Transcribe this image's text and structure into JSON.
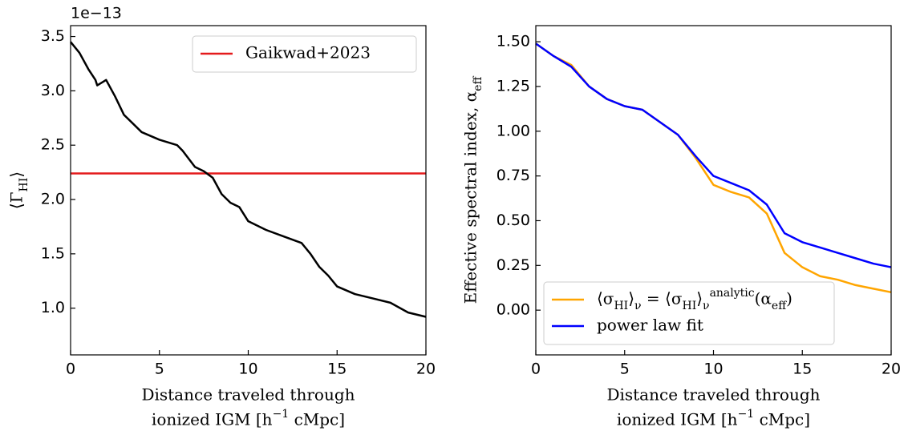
{
  "chart_data": [
    {
      "type": "line",
      "offset_label": "1e−13",
      "ylabel": "⟨Γ_{HI}⟩",
      "xlabel": [
        "Distance traveled through",
        "ionized IGM [h^{−1} cMpc]"
      ],
      "x": [
        0,
        0.5,
        1,
        1.4,
        1.5,
        2,
        2.5,
        3,
        3.5,
        4,
        5,
        6,
        6.3,
        7,
        7.5,
        8,
        8.5,
        9,
        9.5,
        10,
        11,
        12,
        13,
        13.5,
        14,
        14.5,
        15,
        16,
        17,
        18,
        19,
        20
      ],
      "values": [
        3.45,
        3.35,
        3.2,
        3.1,
        3.05,
        3.1,
        2.95,
        2.78,
        2.7,
        2.62,
        2.55,
        2.5,
        2.45,
        2.3,
        2.26,
        2.2,
        2.05,
        1.97,
        1.93,
        1.8,
        1.72,
        1.66,
        1.6,
        1.5,
        1.38,
        1.3,
        1.2,
        1.13,
        1.09,
        1.05,
        0.96,
        0.92
      ],
      "color": "#000000",
      "hlines": [
        {
          "name": "Gaikwad+2023",
          "value": 2.24,
          "color": "#e41a1c"
        }
      ],
      "legend": "upper right",
      "xlim": [
        0,
        20
      ],
      "xticks": [
        0,
        5,
        10,
        15,
        20
      ],
      "ylim": [
        0.57,
        3.6
      ],
      "yticks": [
        {
          "value": 1,
          "label": "1.0"
        },
        {
          "value": 1.5,
          "label": "1.5"
        },
        {
          "value": 2,
          "label": "2.0"
        },
        {
          "value": 2.5,
          "label": "2.5"
        },
        {
          "value": 3,
          "label": "3.0"
        },
        {
          "value": 3.5,
          "label": "3.5"
        }
      ]
    },
    {
      "type": "line",
      "ylabel": "Effective spectral index, α_{eff}",
      "xlabel": [
        "Distance traveled through",
        "ionized IGM [h^{−1} cMpc]"
      ],
      "x": [
        0,
        1,
        2,
        3,
        4,
        5,
        6,
        7,
        8,
        9,
        10,
        11,
        12,
        13,
        14,
        15,
        16,
        17,
        18,
        19,
        20
      ],
      "series": [
        {
          "name": "⟨σ_{HI}⟩_{ν} = ⟨σ_{HI}⟩_{ν}^{analytic}(α_{eff})",
          "color": "#ffa500",
          "values": [
            1.49,
            1.42,
            1.37,
            1.25,
            1.18,
            1.14,
            1.12,
            1.05,
            0.98,
            0.85,
            0.7,
            0.66,
            0.63,
            0.54,
            0.32,
            0.24,
            0.19,
            0.17,
            0.14,
            0.12,
            0.1
          ]
        },
        {
          "name": "power law fit",
          "color": "#0000ff",
          "values": [
            1.49,
            1.42,
            1.36,
            1.25,
            1.18,
            1.14,
            1.12,
            1.05,
            0.98,
            0.86,
            0.75,
            0.71,
            0.67,
            0.59,
            0.43,
            0.38,
            0.35,
            0.32,
            0.29,
            0.26,
            0.24
          ]
        }
      ],
      "legend": "lower left",
      "xlim": [
        0,
        20
      ],
      "xticks": [
        0,
        5,
        10,
        15,
        20
      ],
      "ylim": [
        -0.25,
        1.59
      ],
      "yticks": [
        {
          "value": 0,
          "label": "0.00"
        },
        {
          "value": 0.25,
          "label": "0.25"
        },
        {
          "value": 0.5,
          "label": "0.50"
        },
        {
          "value": 0.75,
          "label": "0.75"
        },
        {
          "value": 1,
          "label": "1.00"
        },
        {
          "value": 1.25,
          "label": "1.25"
        },
        {
          "value": 1.5,
          "label": "1.50"
        }
      ]
    }
  ]
}
